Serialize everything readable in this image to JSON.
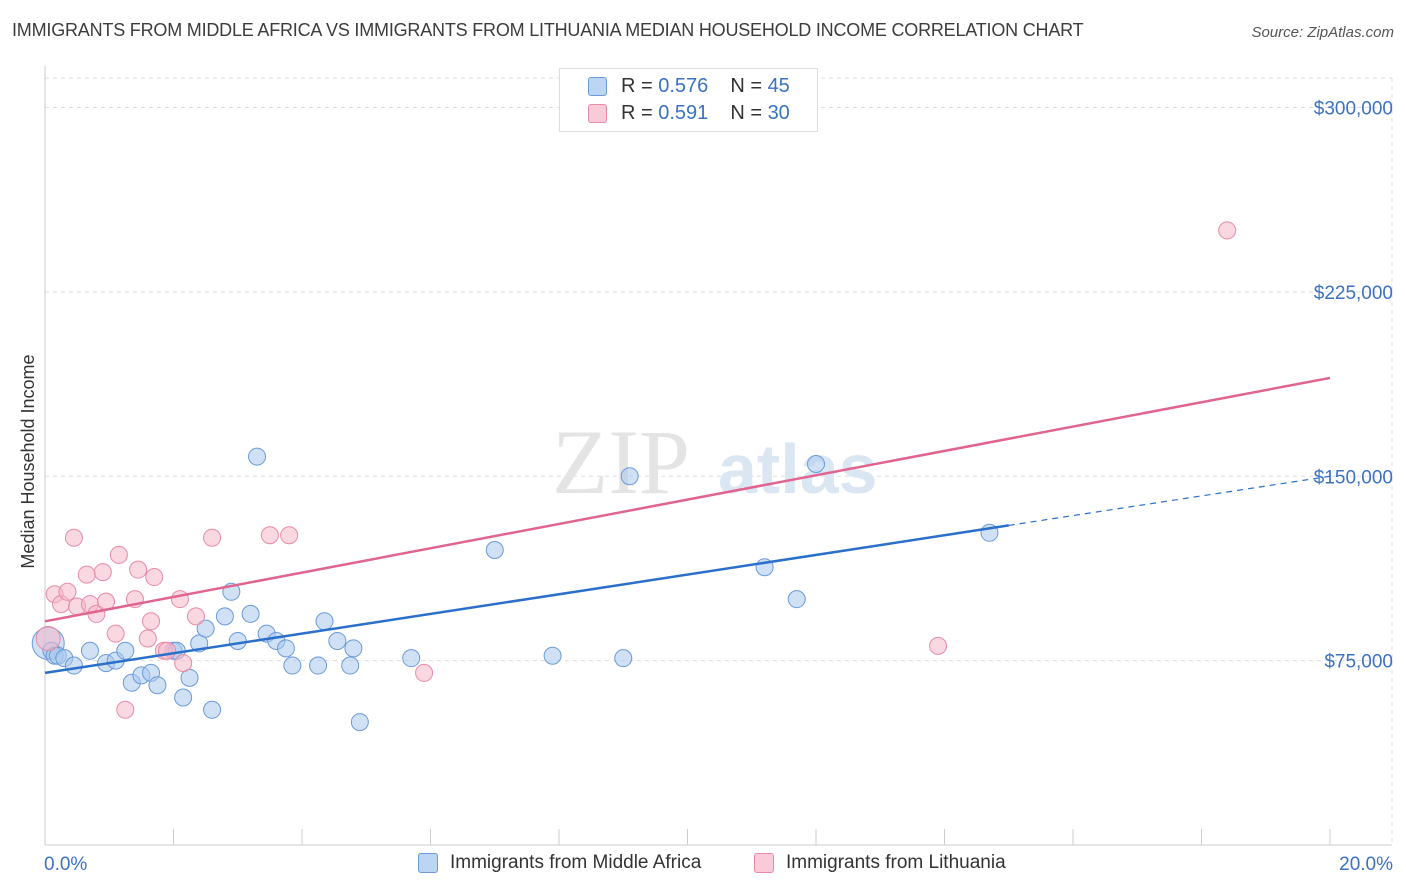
{
  "title": "IMMIGRANTS FROM MIDDLE AFRICA VS IMMIGRANTS FROM LITHUANIA MEDIAN HOUSEHOLD INCOME CORRELATION CHART",
  "source": "Source: ZipAtlas.com",
  "watermark": {
    "zip": "ZIP",
    "atlas": "atlas"
  },
  "legend": {
    "rows": [
      {
        "r_label": "R =",
        "r_value": "0.576",
        "n_label": "N =",
        "n_value": "45"
      },
      {
        "r_label": "R =",
        "r_value": "0.591",
        "n_label": "N =",
        "n_value": "30"
      }
    ]
  },
  "colors": {
    "blue_fill": "#a9c8ef",
    "blue_stroke": "#6a9ad8",
    "blue_line": "#2a6fc9",
    "pink_fill": "#f6b8cb",
    "pink_stroke": "#e98aa8",
    "pink_line": "#e0648f",
    "axis_text": "#3a72c4",
    "grid": "#dddddd"
  },
  "chart_data": {
    "type": "scatter",
    "ylabel": "Median Household Income",
    "xlim": [
      0,
      20
    ],
    "ylim": [
      0,
      312000
    ],
    "x_tick_labels": [
      "0.0%",
      "20.0%"
    ],
    "y_ticks": [
      75000,
      150000,
      225000,
      300000
    ],
    "y_tick_labels": [
      "$75,000",
      "$150,000",
      "$225,000",
      "$300,000"
    ],
    "grid": true,
    "legend_position": "top-center",
    "series": [
      {
        "name": "Immigrants from Middle Africa",
        "color": "blue",
        "r": 0.576,
        "n": 45,
        "trend": {
          "x0": 0,
          "y0": 70000,
          "x1": 15,
          "y1": 130000,
          "dashed_to_x": 20,
          "dashed_to_y": 150000
        },
        "points": [
          [
            0.05,
            82000
          ],
          [
            0.1,
            79000
          ],
          [
            0.15,
            77000
          ],
          [
            0.2,
            77000
          ],
          [
            0.3,
            76000
          ],
          [
            0.45,
            73000
          ],
          [
            0.7,
            79000
          ],
          [
            0.95,
            74000
          ],
          [
            1.1,
            75000
          ],
          [
            1.25,
            79000
          ],
          [
            1.35,
            66000
          ],
          [
            1.5,
            69000
          ],
          [
            1.65,
            70000
          ],
          [
            1.75,
            65000
          ],
          [
            2.0,
            79000
          ],
          [
            2.15,
            60000
          ],
          [
            2.25,
            68000
          ],
          [
            2.4,
            82000
          ],
          [
            2.5,
            88000
          ],
          [
            2.6,
            55000
          ],
          [
            2.8,
            93000
          ],
          [
            2.9,
            103000
          ],
          [
            3.0,
            83000
          ],
          [
            3.2,
            94000
          ],
          [
            3.3,
            158000
          ],
          [
            3.45,
            86000
          ],
          [
            3.6,
            83000
          ],
          [
            3.75,
            80000
          ],
          [
            3.85,
            73000
          ],
          [
            4.25,
            73000
          ],
          [
            4.35,
            91000
          ],
          [
            4.55,
            83000
          ],
          [
            4.75,
            73000
          ],
          [
            4.8,
            80000
          ],
          [
            4.9,
            50000
          ],
          [
            5.7,
            76000
          ],
          [
            7.0,
            120000
          ],
          [
            7.9,
            77000
          ],
          [
            9.0,
            76000
          ],
          [
            9.1,
            150000
          ],
          [
            11.2,
            113000
          ],
          [
            11.7,
            100000
          ],
          [
            12.0,
            155000
          ],
          [
            14.7,
            127000
          ],
          [
            2.05,
            79000
          ]
        ]
      },
      {
        "name": "Immigrants from Lithuania",
        "color": "pink",
        "r": 0.591,
        "n": 30,
        "trend": {
          "x0": 0,
          "y0": 91000,
          "x1": 20,
          "y1": 190000
        },
        "points": [
          [
            0.05,
            84000
          ],
          [
            0.15,
            102000
          ],
          [
            0.25,
            98000
          ],
          [
            0.35,
            103000
          ],
          [
            0.45,
            125000
          ],
          [
            0.5,
            97000
          ],
          [
            0.65,
            110000
          ],
          [
            0.7,
            98000
          ],
          [
            0.8,
            94000
          ],
          [
            0.9,
            111000
          ],
          [
            0.95,
            99000
          ],
          [
            1.1,
            86000
          ],
          [
            1.15,
            118000
          ],
          [
            1.25,
            55000
          ],
          [
            1.4,
            100000
          ],
          [
            1.45,
            112000
          ],
          [
            1.6,
            84000
          ],
          [
            1.65,
            91000
          ],
          [
            1.7,
            109000
          ],
          [
            1.85,
            79000
          ],
          [
            1.9,
            79000
          ],
          [
            2.1,
            100000
          ],
          [
            2.15,
            74000
          ],
          [
            2.35,
            93000
          ],
          [
            2.6,
            125000
          ],
          [
            3.5,
            126000
          ],
          [
            3.8,
            126000
          ],
          [
            5.9,
            70000
          ],
          [
            13.9,
            81000
          ],
          [
            18.4,
            250000
          ]
        ]
      }
    ]
  }
}
